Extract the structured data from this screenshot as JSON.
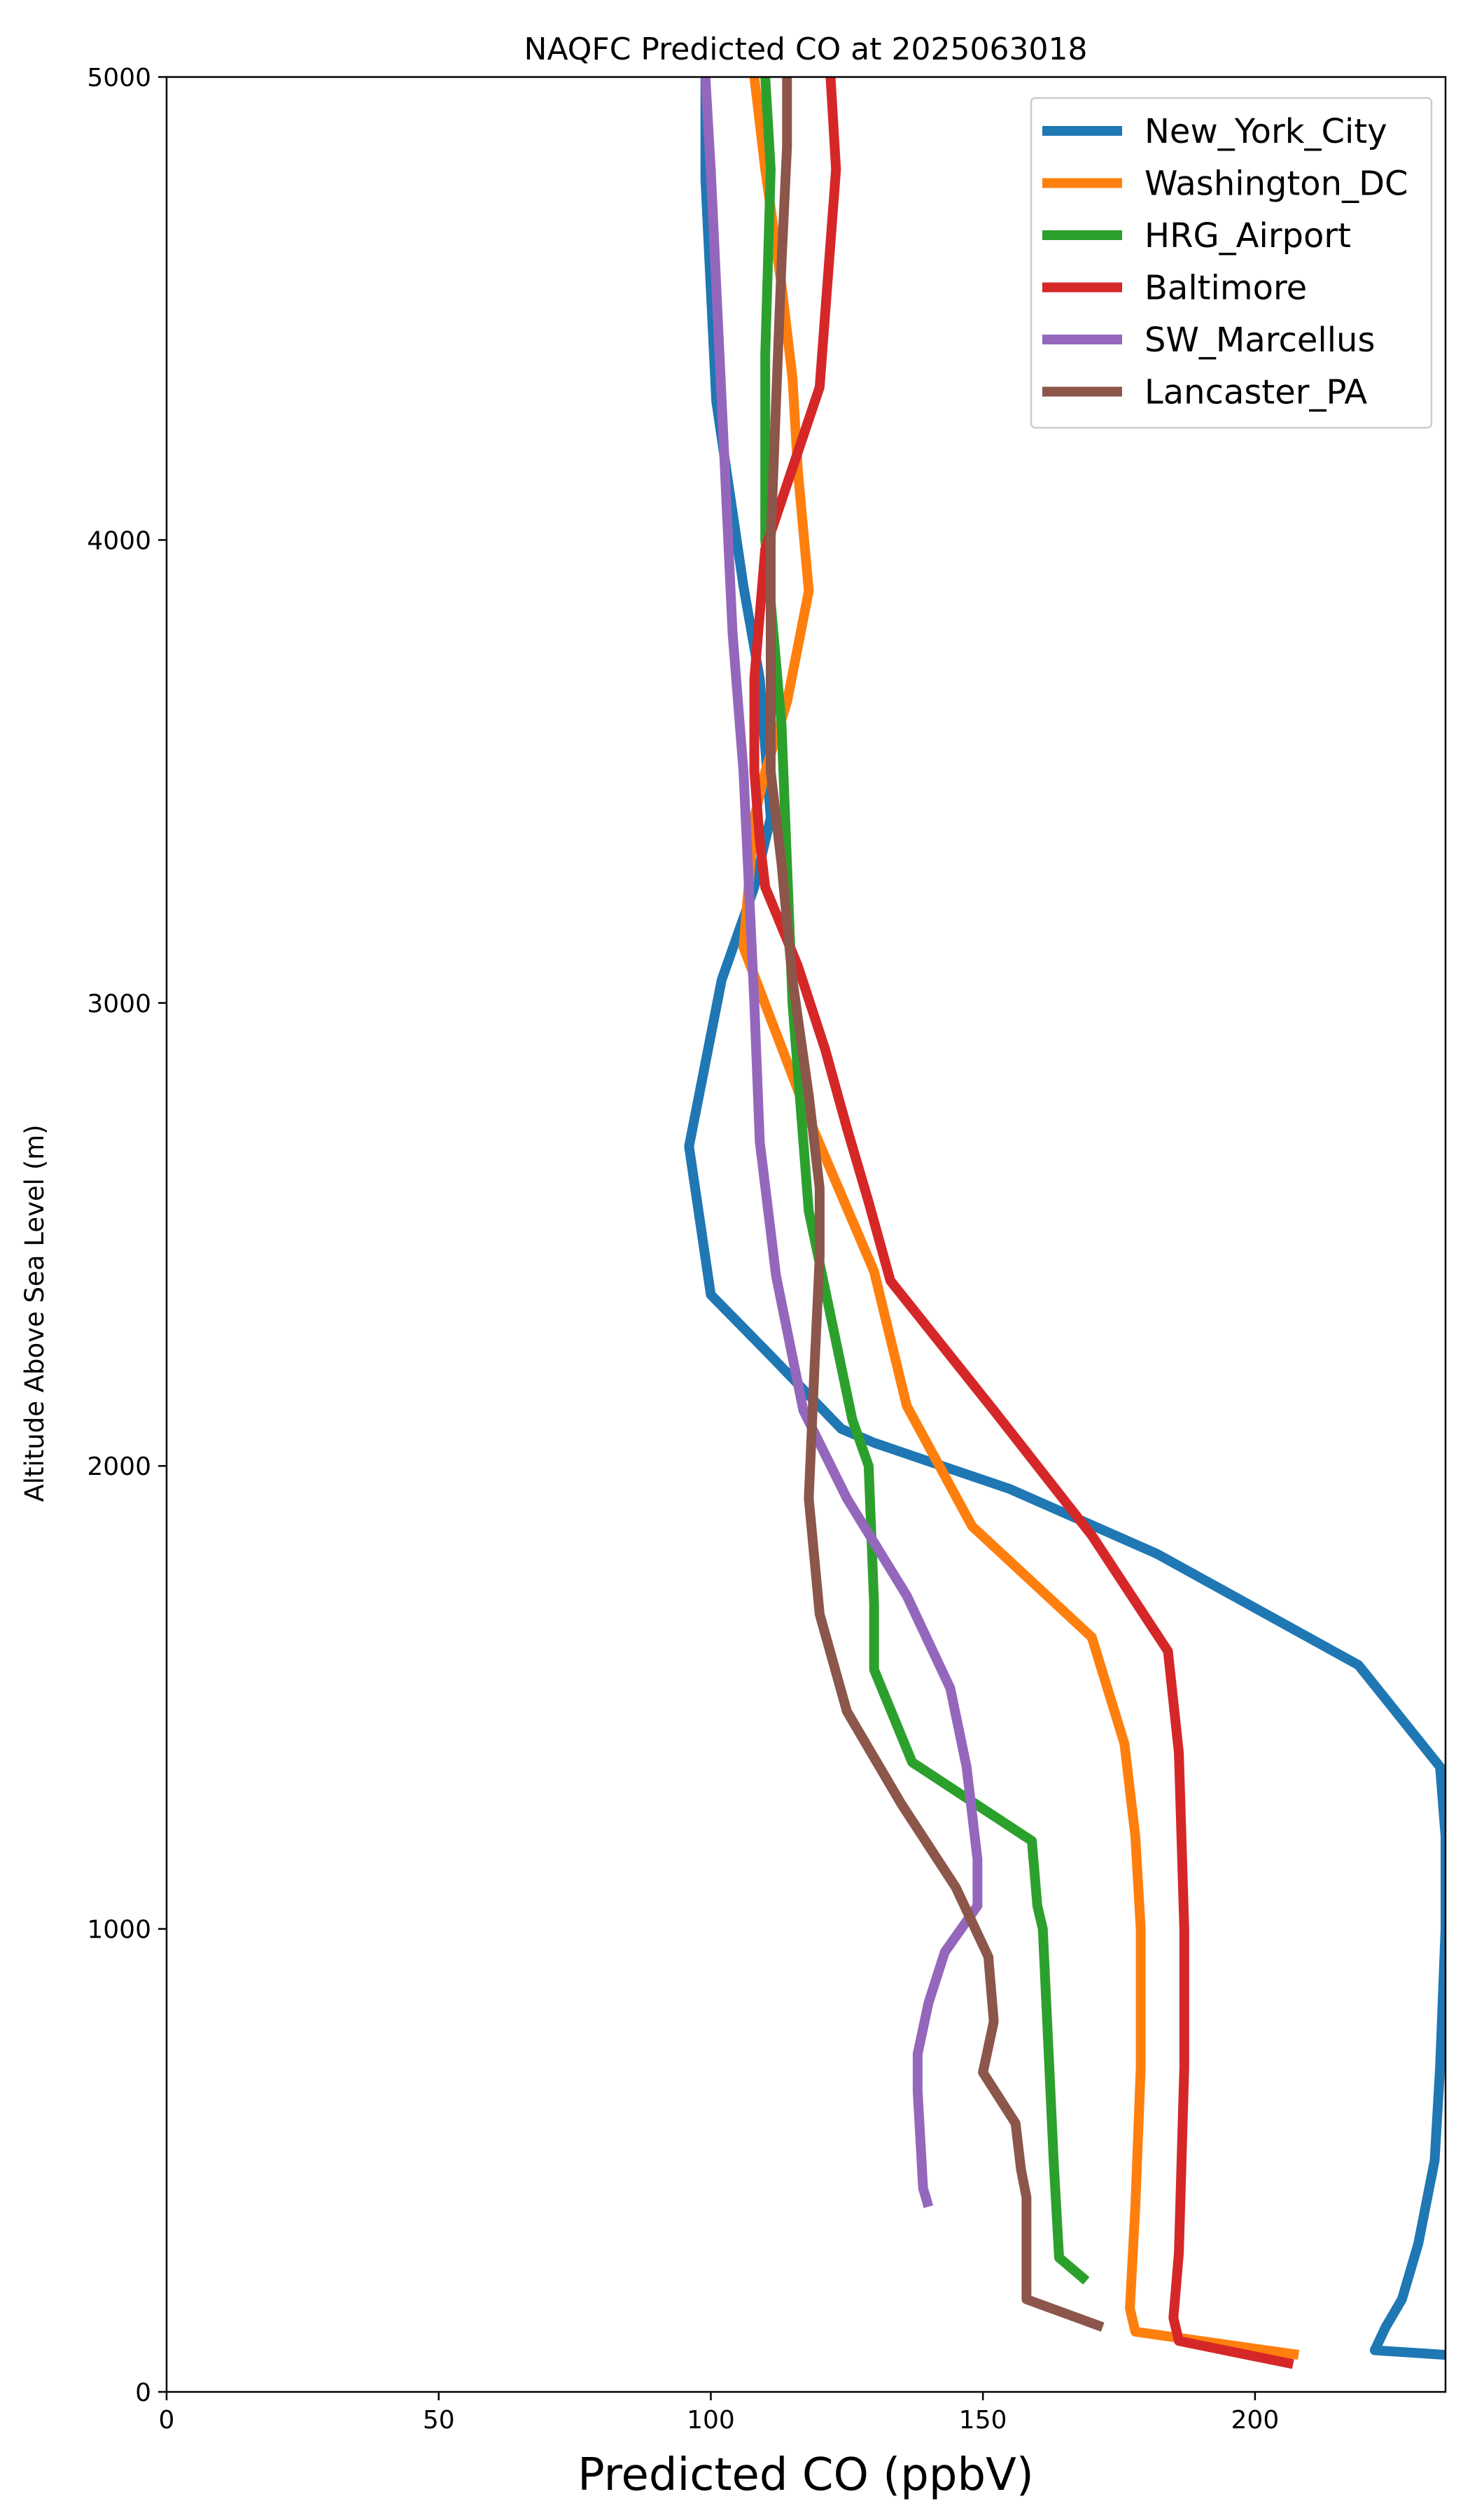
{
  "chart_data": {
    "type": "line",
    "title": "NAQFC Predicted CO at 2025063018",
    "xlabel": "Predicted CO (ppbV)",
    "ylabel": "Altitude Above Sea Level (m)",
    "xlim": [
      0,
      235
    ],
    "ylim": [
      0,
      5000
    ],
    "xticks": [
      0,
      50,
      100,
      150,
      200
    ],
    "yticks": [
      0,
      1000,
      2000,
      3000,
      4000,
      5000
    ],
    "grid": false,
    "legend_position": "top-right",
    "series": [
      {
        "name": "New_York_City",
        "color": "#1f77b4",
        "points": [
          [
            235,
            80
          ],
          [
            222,
            90
          ],
          [
            224,
            140
          ],
          [
            227,
            200
          ],
          [
            230,
            320
          ],
          [
            233,
            500
          ],
          [
            234,
            700
          ],
          [
            235,
            1000
          ],
          [
            235,
            1200
          ],
          [
            234,
            1350
          ],
          [
            219,
            1570
          ],
          [
            182,
            1810
          ],
          [
            155,
            1950
          ],
          [
            130,
            2050
          ],
          [
            124,
            2080
          ],
          [
            110,
            2250
          ],
          [
            100,
            2370
          ],
          [
            96,
            2690
          ],
          [
            102,
            3050
          ],
          [
            108,
            3250
          ],
          [
            111,
            3400
          ],
          [
            109,
            3700
          ],
          [
            106,
            3900
          ],
          [
            101,
            4300
          ],
          [
            99,
            4780
          ],
          [
            99,
            5000
          ]
        ]
      },
      {
        "name": "Washington_DC",
        "color": "#ff7f0e",
        "points": [
          [
            208,
            80
          ],
          [
            178,
            130
          ],
          [
            177,
            180
          ],
          [
            178,
            400
          ],
          [
            179,
            700
          ],
          [
            179,
            1000
          ],
          [
            178,
            1200
          ],
          [
            176,
            1400
          ],
          [
            170,
            1630
          ],
          [
            148,
            1870
          ],
          [
            136,
            2130
          ],
          [
            130,
            2420
          ],
          [
            118,
            2750
          ],
          [
            106,
            3120
          ],
          [
            108,
            3400
          ],
          [
            110,
            3500
          ],
          [
            114,
            3650
          ],
          [
            118,
            3890
          ],
          [
            116,
            4150
          ],
          [
            115,
            4350
          ],
          [
            113,
            4550
          ],
          [
            110,
            4800
          ],
          [
            108,
            5000
          ]
        ]
      },
      {
        "name": "HRG_Airport",
        "color": "#2ca02c",
        "points": [
          [
            169,
            240
          ],
          [
            164,
            290
          ],
          [
            163,
            500
          ],
          [
            162,
            750
          ],
          [
            161,
            1000
          ],
          [
            160,
            1050
          ],
          [
            159,
            1190
          ],
          [
            137,
            1360
          ],
          [
            130,
            1560
          ],
          [
            130,
            1700
          ],
          [
            129,
            2000
          ],
          [
            126,
            2100
          ],
          [
            118,
            2550
          ],
          [
            115,
            3000
          ],
          [
            114,
            3300
          ],
          [
            113,
            3600
          ],
          [
            110,
            4000
          ],
          [
            110,
            4400
          ],
          [
            111,
            4800
          ],
          [
            110,
            5000
          ]
        ]
      },
      {
        "name": "Baltimore",
        "color": "#d62728",
        "points": [
          [
            207,
            60
          ],
          [
            186,
            110
          ],
          [
            185,
            160
          ],
          [
            186,
            300
          ],
          [
            187,
            700
          ],
          [
            187,
            1000
          ],
          [
            186,
            1380
          ],
          [
            184,
            1600
          ],
          [
            170,
            1850
          ],
          [
            152,
            2120
          ],
          [
            133,
            2400
          ],
          [
            129,
            2570
          ],
          [
            125,
            2730
          ],
          [
            121,
            2900
          ],
          [
            116,
            3080
          ],
          [
            110,
            3250
          ],
          [
            109,
            3350
          ],
          [
            108,
            3500
          ],
          [
            108,
            3700
          ],
          [
            110,
            3980
          ],
          [
            120,
            4330
          ],
          [
            123,
            4800
          ],
          [
            122,
            5000
          ]
        ]
      },
      {
        "name": "SW_Marcellus",
        "color": "#9467bd",
        "points": [
          [
            140,
            400
          ],
          [
            139,
            440
          ],
          [
            138,
            650
          ],
          [
            138,
            730
          ],
          [
            140,
            840
          ],
          [
            143,
            950
          ],
          [
            149,
            1050
          ],
          [
            149,
            1150
          ],
          [
            147,
            1350
          ],
          [
            144,
            1520
          ],
          [
            136,
            1720
          ],
          [
            125,
            1930
          ],
          [
            117,
            2120
          ],
          [
            112,
            2410
          ],
          [
            109,
            2700
          ],
          [
            108,
            3000
          ],
          [
            107,
            3250
          ],
          [
            106,
            3500
          ],
          [
            104,
            3800
          ],
          [
            102,
            4300
          ],
          [
            100,
            4800
          ],
          [
            99,
            5000
          ]
        ]
      },
      {
        "name": "Lancaster_PA",
        "color": "#8c564b",
        "points": [
          [
            172,
            140
          ],
          [
            158,
            200
          ],
          [
            158,
            240
          ],
          [
            158,
            420
          ],
          [
            157,
            480
          ],
          [
            156,
            580
          ],
          [
            150,
            690
          ],
          [
            152,
            800
          ],
          [
            151,
            940
          ],
          [
            145,
            1090
          ],
          [
            135,
            1270
          ],
          [
            125,
            1470
          ],
          [
            120,
            1680
          ],
          [
            118,
            1930
          ],
          [
            119,
            2200
          ],
          [
            120,
            2450
          ],
          [
            120,
            2600
          ],
          [
            118,
            2800
          ],
          [
            115,
            3050
          ],
          [
            113,
            3300
          ],
          [
            111,
            3500
          ],
          [
            111,
            3800
          ],
          [
            111,
            4000
          ],
          [
            112,
            4300
          ],
          [
            113,
            4600
          ],
          [
            114,
            4850
          ],
          [
            114,
            5000
          ]
        ]
      }
    ]
  }
}
